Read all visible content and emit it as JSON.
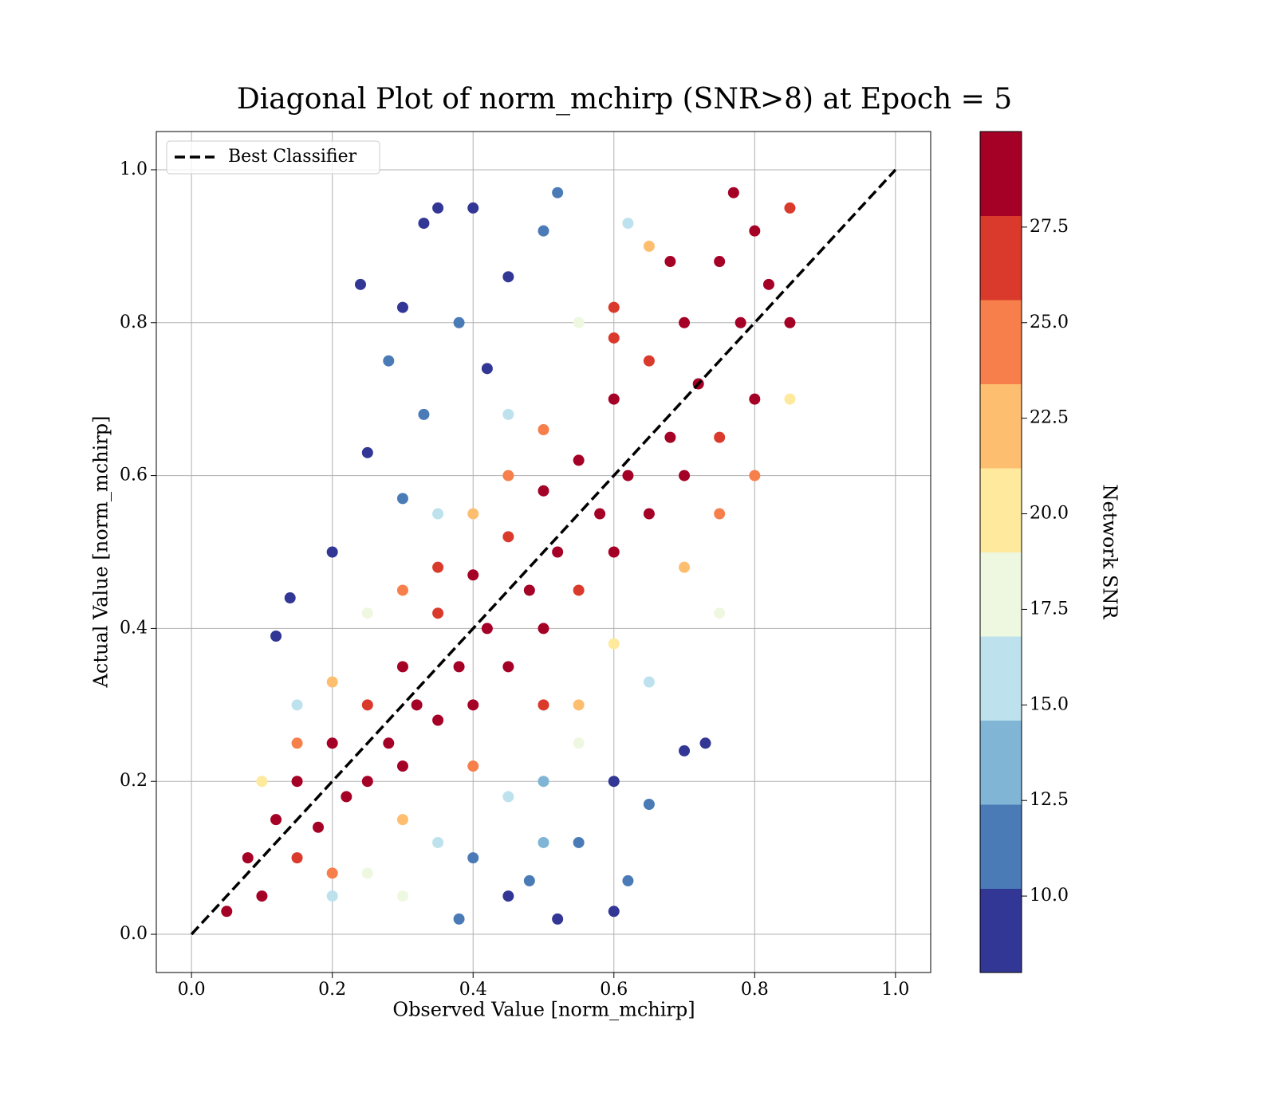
{
  "chart_data": {
    "type": "scatter",
    "title": "Diagonal Plot of norm_mchirp (SNR>8) at Epoch = 5",
    "x_label": "Observed Value [norm_mchirp]",
    "y_label": "Actual Value [norm_mchirp]",
    "colorbar_label": "Network SNR",
    "xlim": [
      -0.05,
      1.05
    ],
    "ylim": [
      -0.05,
      1.05
    ],
    "xticks": [
      {
        "value": 0,
        "label": "0.0"
      },
      0.2,
      0.4,
      0.6,
      0.8,
      {
        "value": 1,
        "label": "1.0"
      }
    ],
    "yticks": [
      {
        "value": 0,
        "label": "0.0"
      },
      0.2,
      0.4,
      0.6,
      0.8,
      {
        "value": 1,
        "label": "1.0"
      }
    ],
    "grid": true,
    "legend": "upper left",
    "clim": [
      8,
      30
    ],
    "cticks": [
      {
        "value": 10,
        "label": "10.0"
      },
      12.5,
      {
        "value": 15,
        "label": "15.0"
      },
      17.5,
      {
        "value": 20,
        "label": "20.0"
      },
      22.5,
      {
        "value": 25,
        "label": "25.0"
      },
      27.5
    ],
    "colormap": [
      "#323695",
      "#4a7bb7",
      "#80b5d6",
      "#bde2ed",
      "#eef8e0",
      "#fee99d",
      "#fdbe6f",
      "#f67f4b",
      "#da3a2c",
      "#a50026"
    ],
    "reference_line": {
      "name": "Best Classifier",
      "color": "#000000",
      "x": [
        0,
        1
      ],
      "y": [
        0,
        1
      ]
    },
    "x": [
      0.12,
      0.14,
      0.25,
      0.28,
      0.33,
      0.35,
      0.4,
      0.24,
      0.3,
      0.38,
      0.33,
      0.45,
      0.5,
      0.52,
      0.42,
      0.3,
      0.2,
      0.4,
      0.45,
      0.48,
      0.52,
      0.6,
      0.55,
      0.6,
      0.65,
      0.7,
      0.73,
      0.62,
      0.38,
      0.5,
      0.15,
      0.25,
      0.35,
      0.45,
      0.55,
      0.62,
      0.25,
      0.35,
      0.45,
      0.55,
      0.65,
      0.75,
      0.2,
      0.3,
      0.5,
      0.1,
      0.2,
      0.3,
      0.4,
      0.5,
      0.6,
      0.65,
      0.2,
      0.3,
      0.4,
      0.5,
      0.6,
      0.7,
      0.8,
      0.85,
      0.15,
      0.35,
      0.55,
      0.75,
      0.45,
      0.05,
      0.08,
      0.1,
      0.12,
      0.15,
      0.15,
      0.18,
      0.2,
      0.22,
      0.25,
      0.25,
      0.28,
      0.3,
      0.3,
      0.32,
      0.35,
      0.35,
      0.38,
      0.4,
      0.4,
      0.42,
      0.45,
      0.45,
      0.48,
      0.5,
      0.5,
      0.52,
      0.55,
      0.55,
      0.58,
      0.6,
      0.6,
      0.62,
      0.65,
      0.65,
      0.68,
      0.7,
      0.7,
      0.72,
      0.75,
      0.75,
      0.78,
      0.8,
      0.8,
      0.82,
      0.85,
      0.85,
      0.77,
      0.68,
      0.6
    ],
    "values": [
      0.39,
      0.44,
      0.63,
      0.75,
      0.93,
      0.95,
      0.95,
      0.85,
      0.82,
      0.8,
      0.68,
      0.86,
      0.92,
      0.97,
      0.74,
      0.57,
      0.5,
      0.1,
      0.05,
      0.07,
      0.02,
      0.03,
      0.12,
      0.2,
      0.17,
      0.24,
      0.25,
      0.07,
      0.02,
      0.12,
      0.3,
      0.42,
      0.55,
      0.68,
      0.8,
      0.93,
      0.08,
      0.12,
      0.18,
      0.25,
      0.33,
      0.42,
      0.05,
      0.05,
      0.2,
      0.2,
      0.33,
      0.45,
      0.55,
      0.66,
      0.78,
      0.9,
      0.08,
      0.15,
      0.22,
      0.3,
      0.38,
      0.48,
      0.6,
      0.7,
      0.25,
      0.48,
      0.3,
      0.55,
      0.6,
      0.03,
      0.1,
      0.05,
      0.15,
      0.1,
      0.2,
      0.14,
      0.25,
      0.18,
      0.3,
      0.2,
      0.25,
      0.35,
      0.22,
      0.3,
      0.42,
      0.28,
      0.35,
      0.47,
      0.3,
      0.4,
      0.52,
      0.35,
      0.45,
      0.58,
      0.4,
      0.5,
      0.62,
      0.45,
      0.55,
      0.7,
      0.5,
      0.6,
      0.75,
      0.55,
      0.65,
      0.8,
      0.6,
      0.72,
      0.88,
      0.65,
      0.8,
      0.92,
      0.7,
      0.85,
      0.95,
      0.8,
      0.97,
      0.88,
      0.82
    ],
    "color_values": [
      9,
      10,
      9,
      11,
      9,
      10,
      9,
      9,
      10,
      11,
      12,
      10,
      11,
      12,
      10,
      11,
      9,
      12,
      10,
      11,
      9,
      9,
      12,
      10,
      11,
      9,
      10,
      11,
      12,
      13,
      16,
      17,
      15,
      16,
      18,
      15,
      17,
      16,
      15,
      18,
      16,
      17,
      15,
      18,
      14,
      21,
      23,
      25,
      22,
      24,
      26,
      23,
      25,
      22,
      24,
      26,
      21,
      23,
      25,
      20,
      24,
      26,
      22,
      24,
      25,
      29,
      28,
      29,
      29,
      27,
      29,
      28,
      29,
      29,
      27,
      29,
      29,
      28,
      29,
      29,
      27,
      29,
      29,
      28,
      29,
      29,
      27,
      29,
      29,
      28,
      29,
      29,
      29,
      27,
      29,
      28,
      29,
      29,
      27,
      29,
      29,
      28,
      29,
      29,
      29,
      27,
      29,
      29,
      28,
      29,
      27,
      29,
      28,
      29,
      27
    ]
  }
}
